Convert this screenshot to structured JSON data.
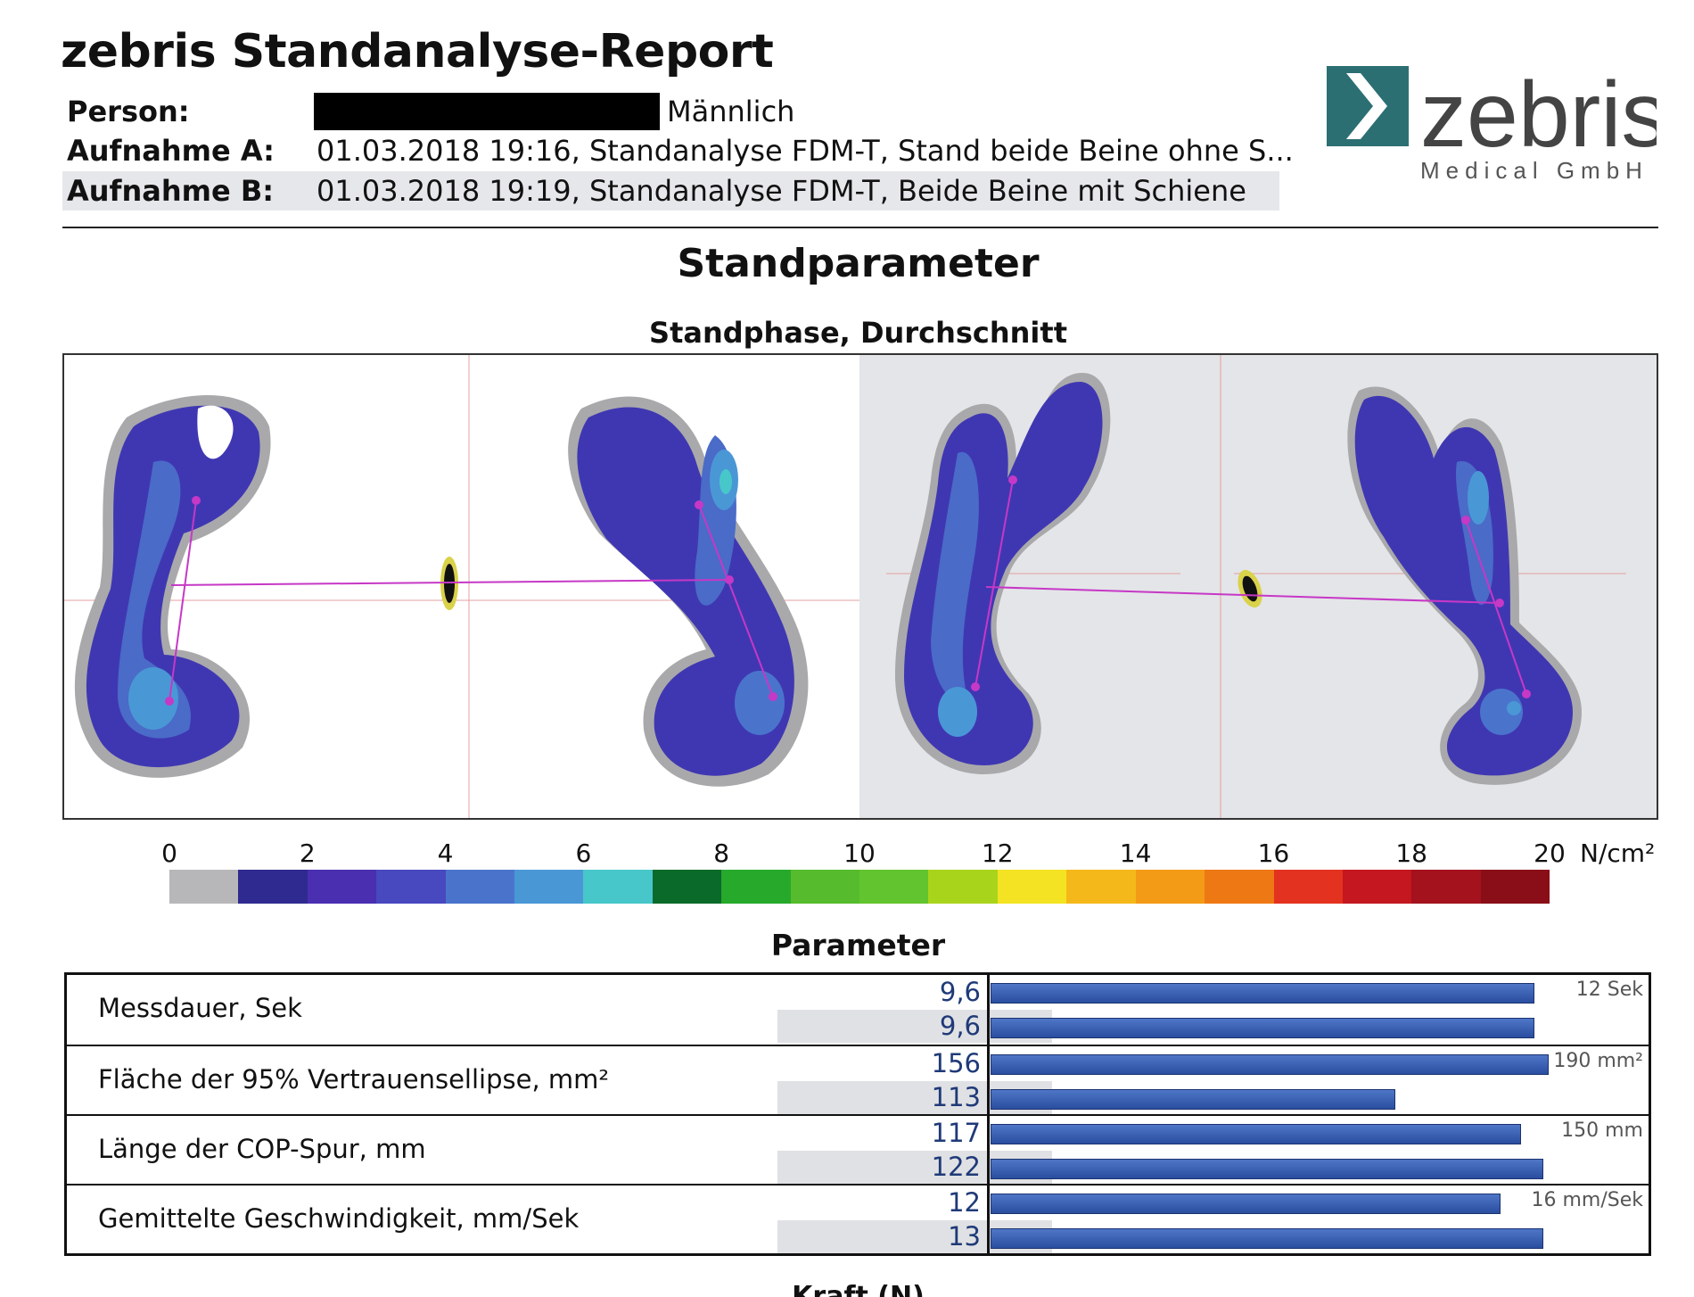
{
  "header": {
    "title": "zebris Standanalyse-Report",
    "person_label": "Person:",
    "person_gender": "Männlich",
    "recording_a_label": "Aufnahme A:",
    "recording_a_value": "01.03.2018 19:16, Standanalyse FDM-T, Stand beide Beine ohne S...",
    "recording_b_label": "Aufnahme B:",
    "recording_b_value": "01.03.2018 19:19, Standanalyse FDM-T, Beide Beine mit Schiene",
    "logo_text": "zebris",
    "logo_subtext": "Medical GmbH",
    "logo_color": "#2c6f73"
  },
  "section": {
    "title": "Standparameter",
    "subtitle": "Standphase, Durchschnitt"
  },
  "pressure_scale": {
    "ticks": [
      "0",
      "2",
      "4",
      "6",
      "8",
      "10",
      "12",
      "14",
      "16",
      "18",
      "20"
    ],
    "unit": "N/cm²",
    "colors": [
      "#b7b7b9",
      "#2f2a8f",
      "#4a2fb0",
      "#4848bf",
      "#4a74cc",
      "#4a97d6",
      "#47c7c9",
      "#0a6a2a",
      "#27a92c",
      "#56bc2d",
      "#62c42f",
      "#a9d41c",
      "#f3e322",
      "#f5b81a",
      "#f39b16",
      "#ee7814",
      "#e33220",
      "#c4171f",
      "#a3121d",
      "#8a0e18"
    ]
  },
  "parameters": {
    "title": "Parameter",
    "rows": [
      {
        "label": "Messdauer, Sek",
        "value_a": "9,6",
        "value_b": "9,6",
        "max_label": "12 Sek",
        "fill_a": 0.8,
        "fill_b": 0.8
      },
      {
        "label": "Fläche der 95% Vertrauensellipse, mm²",
        "value_a": "156",
        "value_b": "113",
        "max_label": "190 mm²",
        "fill_a": 0.821,
        "fill_b": 0.595
      },
      {
        "label": "Länge der COP-Spur, mm",
        "value_a": "117",
        "value_b": "122",
        "max_label": "150 mm",
        "fill_a": 0.78,
        "fill_b": 0.813
      },
      {
        "label": "Gemittelte Geschwindigkeit, mm/Sek",
        "value_a": "12",
        "value_b": "13",
        "max_label": "16 mm/Sek",
        "fill_a": 0.75,
        "fill_b": 0.8125
      }
    ]
  },
  "footer_partial": "Kraft (N)"
}
